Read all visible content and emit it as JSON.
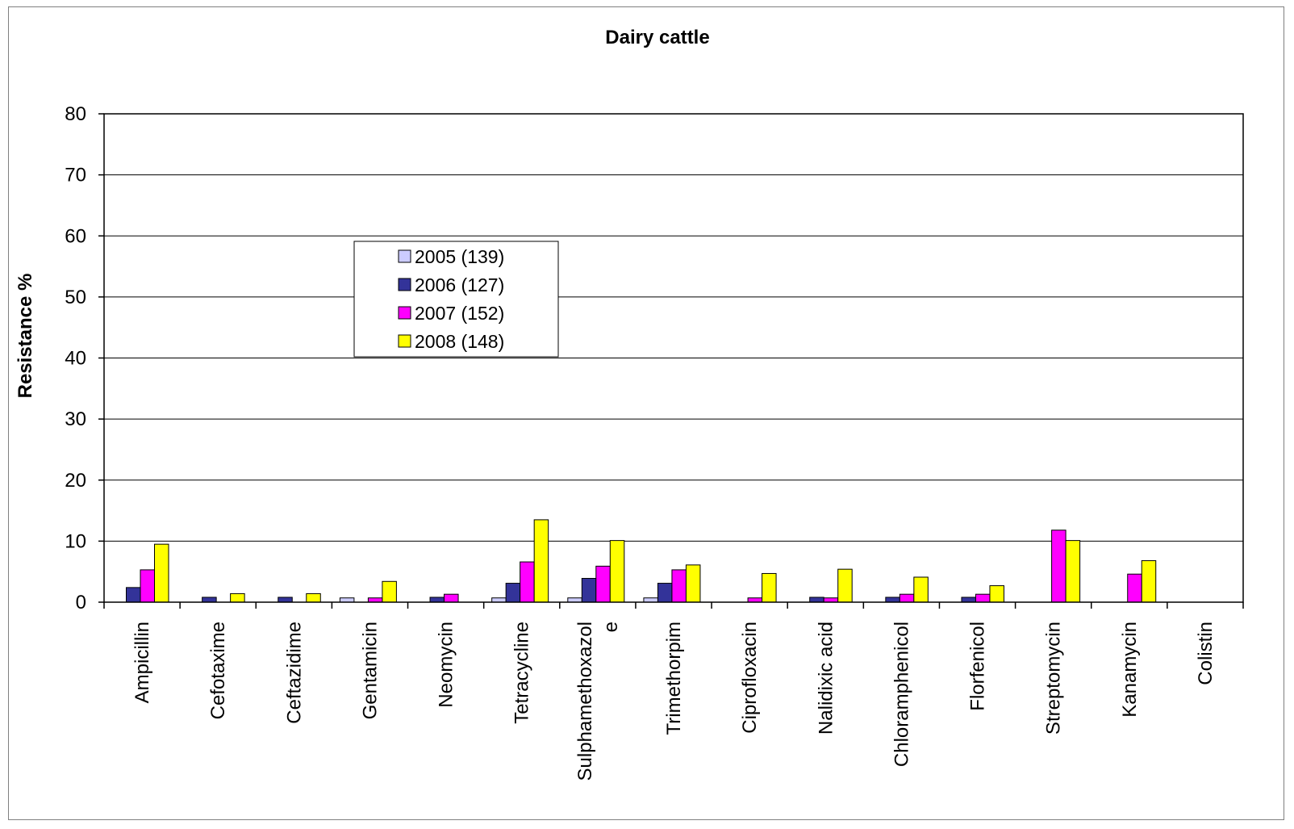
{
  "chart_data": {
    "type": "bar",
    "title": "Dairy cattle",
    "xlabel": "",
    "ylabel": "Resistance %",
    "ylim": [
      0,
      80
    ],
    "yticks": [
      0,
      10,
      20,
      30,
      40,
      50,
      60,
      70,
      80
    ],
    "grid": true,
    "legend_position": "upper-left-center",
    "categories": [
      [
        "Ampicillin"
      ],
      [
        "Cefotaxime"
      ],
      [
        "Ceftazidime"
      ],
      [
        "Gentamicin"
      ],
      [
        "Neomycin"
      ],
      [
        "Tetracycline"
      ],
      [
        "Sulphamethoxazol",
        "e"
      ],
      [
        "Trimethorpim"
      ],
      [
        "Ciprofloxacin"
      ],
      [
        "Nalidixic acid"
      ],
      [
        "Chloramphenicol"
      ],
      [
        "Florfenicol"
      ],
      [
        "Streptomycin"
      ],
      [
        "Kanamycin"
      ],
      [
        "Colistin"
      ]
    ],
    "series": [
      {
        "name": "2005 (139)",
        "color": "#ccccff",
        "values": [
          0,
          0,
          0,
          0.7,
          0,
          0.7,
          0.7,
          0.7,
          0,
          0,
          0,
          0,
          0,
          0,
          0
        ]
      },
      {
        "name": "2006 (127)",
        "color": "#333399",
        "values": [
          2.4,
          0.8,
          0.8,
          0,
          0.8,
          3.1,
          3.9,
          3.1,
          0,
          0.8,
          0.8,
          0.8,
          0,
          0,
          0
        ]
      },
      {
        "name": "2007 (152)",
        "color": "#ff00ff",
        "values": [
          5.3,
          0,
          0,
          0.7,
          1.3,
          6.6,
          5.9,
          5.3,
          0.7,
          0.7,
          1.3,
          1.3,
          11.8,
          4.6,
          0
        ]
      },
      {
        "name": "2008 (148)",
        "color": "#ffff00",
        "values": [
          9.5,
          1.4,
          1.4,
          3.4,
          0,
          13.5,
          10.1,
          6.1,
          4.7,
          5.4,
          4.1,
          2.7,
          10.1,
          6.8,
          0
        ]
      }
    ]
  }
}
